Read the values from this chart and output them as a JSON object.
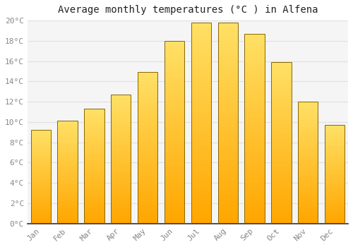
{
  "title": "Average monthly temperatures (°C ) in Alfena",
  "months": [
    "Jan",
    "Feb",
    "Mar",
    "Apr",
    "May",
    "Jun",
    "Jul",
    "Aug",
    "Sep",
    "Oct",
    "Nov",
    "Dec"
  ],
  "temperatures": [
    9.2,
    10.1,
    11.3,
    12.7,
    14.9,
    18.0,
    19.8,
    19.8,
    18.7,
    15.9,
    12.0,
    9.7
  ],
  "bar_color_top": "#FFE066",
  "bar_color_bottom": "#FFA500",
  "bar_edge_color": "#886600",
  "bar_edge_width": 0.7,
  "ylim": [
    0,
    20
  ],
  "yticks": [
    0,
    2,
    4,
    6,
    8,
    10,
    12,
    14,
    16,
    18,
    20
  ],
  "grid_color": "#e0e0e0",
  "plot_bg_color": "#f5f5f5",
  "outer_bg_color": "#ffffff",
  "title_fontsize": 10,
  "tick_fontsize": 8,
  "tick_color": "#888888",
  "fig_width": 5.0,
  "fig_height": 3.5,
  "dpi": 100
}
